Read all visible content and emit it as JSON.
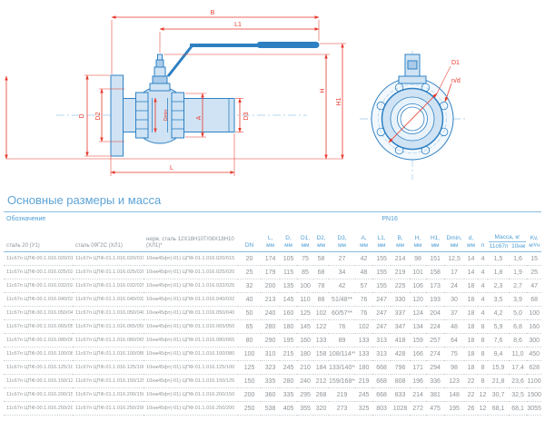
{
  "colors": {
    "blue": "#2e80c3",
    "red": "#e8392c",
    "titleblue": "#5ea4d7",
    "headblue": "#4f9ed5",
    "graytext": "#8f9397"
  },
  "title": "Основные размеры и масса",
  "drawing": {
    "dim_labels": {
      "B": "B",
      "L1": "L1",
      "H": "H",
      "H1": "H1",
      "D": "D",
      "D2": "D2",
      "Dmin": "Dmin",
      "A": "A",
      "D3": "D3",
      "L": "L",
      "D1": "D1",
      "nd": "n/d"
    }
  },
  "table": {
    "designation_header": "Обозначение",
    "pn_header": "PN16",
    "materials": [
      "сталь 20 (У1)",
      "сталь 09Г2С (ХЛ1)",
      "нерж. сталь 12Х18Н10Т/08Х18Н10 (ХЛ1)*"
    ],
    "dim_cols": [
      [
        "DN",
        ""
      ],
      [
        "L,",
        "мм"
      ],
      [
        "D,",
        "мм"
      ],
      [
        "D1,",
        "мм"
      ],
      [
        "D2,",
        "мм"
      ],
      [
        "D3,",
        "мм"
      ],
      [
        "A,",
        "мм"
      ],
      [
        "L1,",
        "мм"
      ],
      [
        "B,",
        "мм"
      ],
      [
        "H,",
        "мм"
      ],
      [
        "H1,",
        "мм"
      ],
      [
        "Dmin,",
        "мм"
      ],
      [
        "d,",
        "мм"
      ],
      [
        "n",
        ""
      ]
    ],
    "mass_header": "Масса, кг",
    "mass_sub": [
      "11с67п",
      "10нж"
    ],
    "kv_header": [
      "Kv,",
      "м³/ч"
    ],
    "rows": [
      {
        "d": [
          "11с67п ЦПФ.00.1.016.020/015",
          "11с67п ЦПФ.01.1.016.020/015",
          "10нж45фт(-01) ЦПФ.01.1.016.020/015"
        ],
        "v": [
          "20",
          "174",
          "105",
          "75",
          "58",
          "27",
          "42",
          "155",
          "214",
          "98",
          "151",
          "12,5",
          "14",
          "4",
          "1,5",
          "1,6",
          "15"
        ]
      },
      {
        "d": [
          "11с67п ЦПФ.00.1.016.025/020",
          "11с67п ЦПФ.01.1.016.025/020",
          "10нж45фт(-01) ЦПФ.01.1.016.025/020"
        ],
        "v": [
          "25",
          "179",
          "115",
          "85",
          "68",
          "34",
          "48",
          "155",
          "219",
          "101",
          "158",
          "17",
          "14",
          "4",
          "1,8",
          "1,9",
          "25"
        ]
      },
      {
        "d": [
          "11с67п ЦПФ.00.1.016.032/025",
          "11с67п ЦПФ.01.1.016.032/025",
          "10нж45фт(-01) ЦПФ.01.1.016.032/025"
        ],
        "v": [
          "32",
          "200",
          "135",
          "100",
          "78",
          "42",
          "57",
          "155",
          "225",
          "106",
          "173",
          "24",
          "18",
          "4",
          "2,3",
          "2,7",
          "47"
        ]
      },
      {
        "d": [
          "11с67п ЦПФ.00.1.016.040/032",
          "11с67п ЦПФ.01.1.016.040/032",
          "10нж45фт(-01) ЦПФ.01.1.016.040/032"
        ],
        "v": [
          "40",
          "213",
          "145",
          "110",
          "88",
          "51/48**",
          "76",
          "247",
          "330",
          "120",
          "193",
          "30",
          "18",
          "4",
          "3,5",
          "3,9",
          "68"
        ]
      },
      {
        "d": [
          "11с67п ЦПФ.00.1.016.050/040",
          "11с67п ЦПФ.01.1.016.050/040",
          "10нж45фт(-01) ЦПФ.01.1.016.050/040"
        ],
        "v": [
          "50",
          "240",
          "160",
          "125",
          "102",
          "60/57**",
          "76",
          "247",
          "337",
          "124",
          "204",
          "37",
          "18",
          "4",
          "4,2",
          "5,0",
          "100"
        ]
      },
      {
        "d": [
          "11с67п ЦПФ.00.1.016.065/050",
          "11с67п ЦПФ.01.1.016.065/050",
          "10нж45фт(-01) ЦПФ.01.1.016.065/050"
        ],
        "v": [
          "65",
          "280",
          "180",
          "145",
          "122",
          "76",
          "102",
          "247",
          "347",
          "134",
          "224",
          "48",
          "18",
          "8",
          "5,9",
          "6,8",
          "160"
        ]
      },
      {
        "d": [
          "11с67п ЦПФ.00.1.016.080/065",
          "11с67п ЦПФ.01.1.016.080/065",
          "10нж45фт(-01) ЦПФ.01.1.016.080/065"
        ],
        "v": [
          "80",
          "290",
          "195",
          "160",
          "133",
          "89",
          "133",
          "313",
          "418",
          "159",
          "257",
          "64",
          "18",
          "8",
          "7,6",
          "8,6",
          "300"
        ]
      },
      {
        "d": [
          "11с67п ЦПФ.00.1.016.100/080",
          "11с67п ЦПФ.01.1.016.100/080",
          "10нж45фт(-01) ЦПФ.01.1.016.100/080"
        ],
        "v": [
          "100",
          "310",
          "215",
          "180",
          "158",
          "108/114**",
          "133",
          "313",
          "428",
          "166",
          "274",
          "75",
          "18",
          "8",
          "9,4",
          "11,0",
          "450"
        ]
      },
      {
        "d": [
          "11с67п ЦПФ.00.1.016.125/100",
          "11с67п ЦПФ.01.1.016.125/100",
          "10нж45фт(-01) ЦПФ.01.1.016.125/100"
        ],
        "v": [
          "125",
          "323",
          "245",
          "210",
          "184",
          "133/140**",
          "180",
          "668",
          "796",
          "171",
          "294",
          "98",
          "18",
          "8",
          "15,9",
          "17,4",
          "628"
        ]
      },
      {
        "d": [
          "11с67п ЦПФ.00.1.016.150/125",
          "11с67п ЦПФ.01.1.016.150/125",
          "10нж45фт(-01) ЦПФ.01.1.016.150/125"
        ],
        "v": [
          "150",
          "335",
          "280",
          "240",
          "212",
          "159/168**",
          "219",
          "668",
          "808",
          "196",
          "336",
          "123",
          "22",
          "8",
          "21,8",
          "23,6",
          "1100"
        ]
      },
      {
        "d": [
          "11с67п ЦПФ.00.1.016.200/150",
          "11с67п ЦПФ.01.1.016.200/150",
          "10нж45фт(-01) ЦПФ.01.1.016.200/150"
        ],
        "v": [
          "200",
          "360",
          "335",
          "295",
          "268",
          "219",
          "245",
          "668",
          "833",
          "214",
          "381",
          "148",
          "22",
          "12",
          "30,7",
          "32,5",
          "1500"
        ]
      },
      {
        "d": [
          "11с67п ЦПФ.00.1.016.250/200",
          "11с67п ЦПФ.01.1.016.250/200",
          "10нж45фт(-01) ЦПФ.01.1.016.250/200"
        ],
        "v": [
          "250",
          "538",
          "405",
          "355",
          "320",
          "273",
          "325",
          "803",
          "1028",
          "272",
          "475",
          "195",
          "26",
          "12",
          "68,1",
          "68,1",
          "3055"
        ]
      }
    ]
  }
}
